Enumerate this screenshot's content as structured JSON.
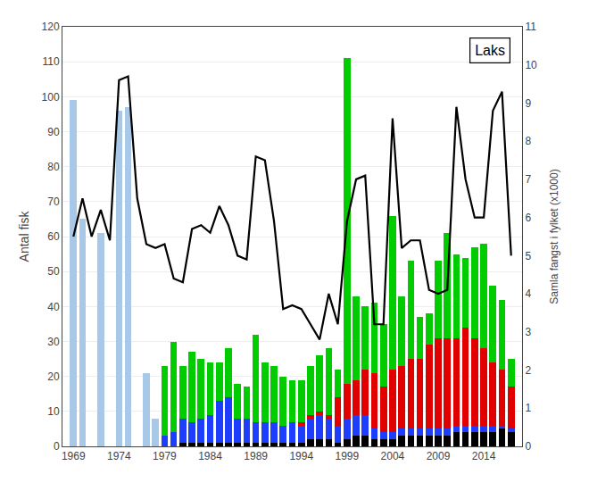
{
  "chart_data": {
    "type": "bar",
    "title": "Laks",
    "ylabel": "Antal fisk",
    "y2label": "Samla fangst i fylket (x1000)",
    "x": [
      1969,
      1970,
      1971,
      1972,
      1973,
      1974,
      1975,
      1976,
      1977,
      1978,
      1979,
      1980,
      1981,
      1982,
      1983,
      1984,
      1985,
      1986,
      1987,
      1988,
      1989,
      1990,
      1991,
      1992,
      1993,
      1994,
      1995,
      1996,
      1997,
      1998,
      1999,
      2000,
      2001,
      2002,
      2003,
      2004,
      2005,
      2006,
      2007,
      2008,
      2009,
      2010,
      2011,
      2012,
      2013,
      2014,
      2015,
      2016,
      2017
    ],
    "series": [
      {
        "color": "#a8c8e8",
        "values": [
          99,
          65,
          0,
          61,
          0,
          96,
          97,
          0,
          21,
          8,
          0,
          0,
          0,
          0,
          0,
          0,
          0,
          0,
          0,
          0,
          0,
          0,
          0,
          0,
          0,
          0,
          0,
          0,
          0,
          0,
          0,
          0,
          0,
          0,
          0,
          0,
          0,
          0,
          0,
          0,
          0,
          0,
          0,
          0,
          0,
          0,
          0,
          0,
          0
        ]
      },
      {
        "color": "#000000",
        "values": [
          0,
          0,
          0,
          0,
          0,
          0,
          0,
          0,
          0,
          0,
          0,
          0,
          1,
          1,
          1,
          1,
          1,
          1,
          1,
          1,
          1,
          1,
          1,
          1,
          1,
          1,
          2,
          2,
          2,
          1,
          2,
          3,
          3,
          2,
          2,
          2,
          3,
          3,
          3,
          3,
          3,
          3,
          4,
          4,
          4,
          4,
          4,
          5,
          4
        ]
      },
      {
        "color": "#1e3eff",
        "values": [
          0,
          0,
          0,
          0,
          0,
          0,
          0,
          0,
          0,
          0,
          3,
          4,
          7,
          6,
          7,
          8,
          12,
          13,
          7,
          7,
          6,
          6,
          6,
          5,
          6,
          5,
          6,
          7,
          6,
          5,
          6,
          6,
          6,
          3,
          2,
          2,
          2,
          2,
          2,
          2,
          2,
          2,
          2,
          2,
          2,
          2,
          2,
          1,
          1
        ]
      },
      {
        "color": "#e00000",
        "values": [
          0,
          0,
          0,
          0,
          0,
          0,
          0,
          0,
          0,
          0,
          0,
          0,
          0,
          0,
          0,
          0,
          0,
          0,
          0,
          0,
          0,
          0,
          0,
          0,
          0,
          1,
          1,
          1,
          1,
          8,
          10,
          10,
          13,
          16,
          13,
          18,
          18,
          20,
          20,
          24,
          26,
          26,
          25,
          28,
          25,
          22,
          18,
          16,
          12
        ]
      },
      {
        "color": "#00cc00",
        "values": [
          0,
          0,
          0,
          0,
          0,
          0,
          0,
          0,
          0,
          0,
          20,
          26,
          15,
          20,
          17,
          15,
          11,
          14,
          10,
          9,
          25,
          17,
          16,
          14,
          12,
          12,
          14,
          16,
          19,
          8,
          93,
          24,
          18,
          20,
          18,
          44,
          20,
          28,
          12,
          9,
          22,
          30,
          24,
          20,
          26,
          30,
          22,
          20,
          8
        ]
      },
      {
        "type": "line",
        "axis": "y2",
        "color": "#000000",
        "values": [
          5.5,
          6.5,
          5.5,
          6.2,
          5.4,
          9.6,
          9.7,
          6.5,
          5.3,
          5.2,
          5.3,
          4.4,
          4.3,
          5.7,
          5.8,
          5.6,
          6.3,
          5.8,
          5.0,
          4.9,
          7.6,
          7.5,
          5.9,
          3.6,
          3.7,
          3.6,
          3.2,
          2.8,
          4.0,
          3.2,
          5.9,
          7.0,
          7.1,
          3.2,
          3.2,
          8.6,
          5.2,
          5.4,
          5.4,
          4.1,
          4.0,
          4.1,
          8.9,
          7.0,
          6.0,
          6.0,
          8.8,
          9.3,
          5.0
        ]
      }
    ],
    "stacked": true,
    "grid": "y",
    "xlim": [
      1967.8,
      2018.2
    ],
    "xticks": [
      1969,
      1974,
      1979,
      1984,
      1989,
      1994,
      1999,
      2004,
      2009,
      2014
    ],
    "ylim": [
      0,
      120
    ],
    "yticks": [
      0,
      10,
      20,
      30,
      40,
      50,
      60,
      70,
      80,
      90,
      100,
      110,
      120
    ],
    "y2lim": [
      0,
      11
    ],
    "y2ticks": [
      0,
      1,
      2,
      3,
      4,
      5,
      6,
      7,
      8,
      9,
      10,
      11
    ]
  }
}
